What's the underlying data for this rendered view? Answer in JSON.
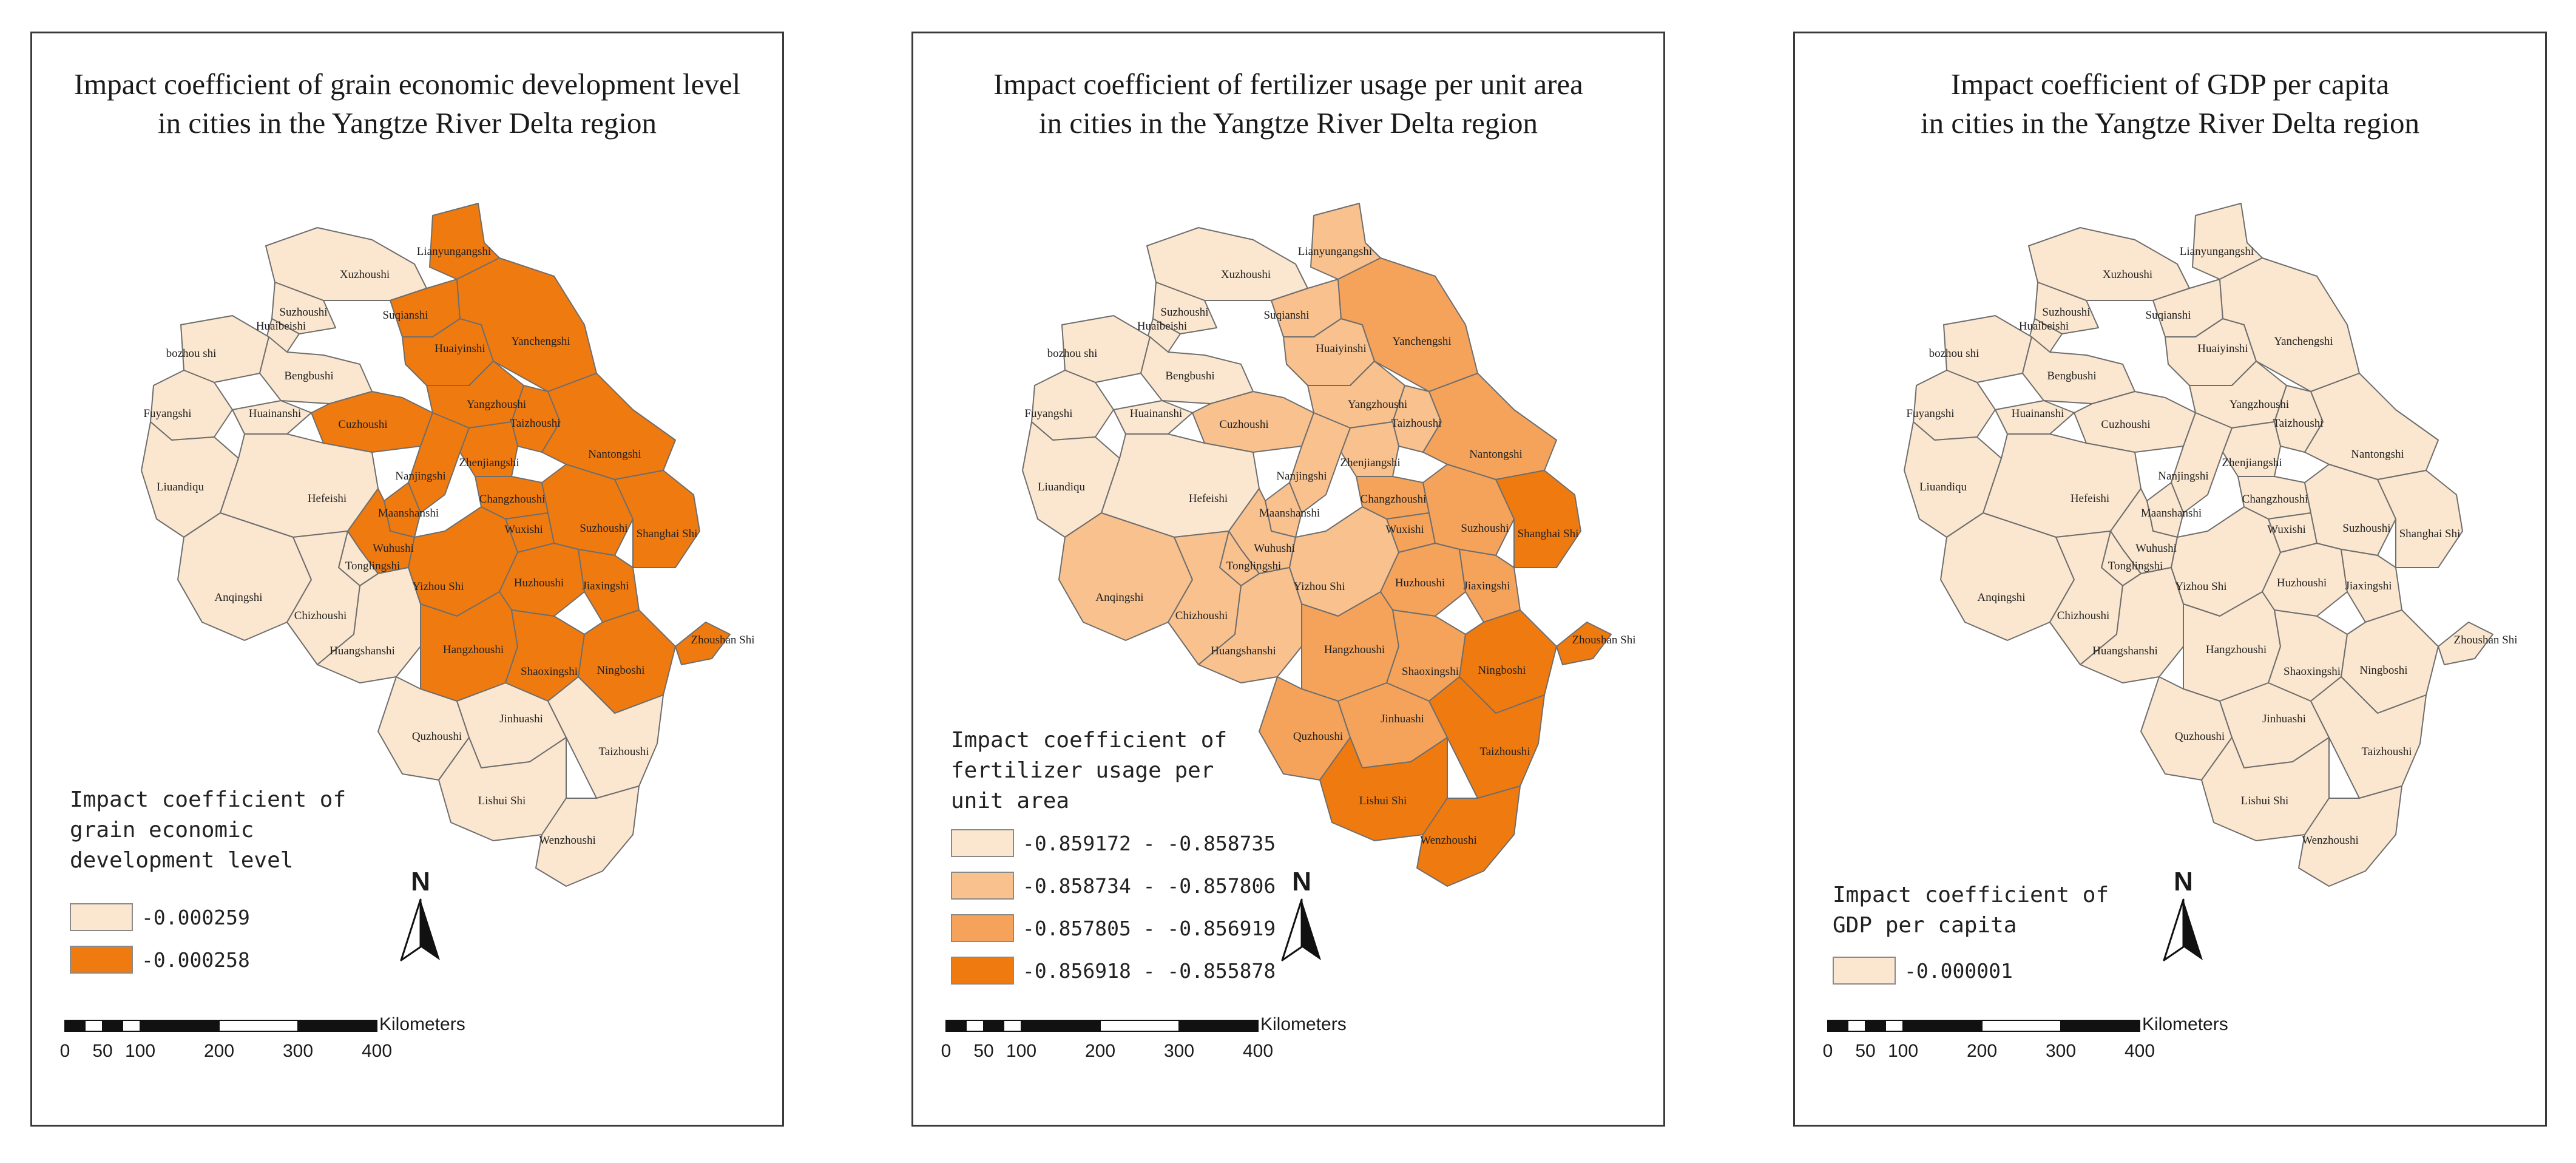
{
  "colors": {
    "light": "#fbe7cf",
    "c2": "#f8c18e",
    "c3": "#f5a35a",
    "dark": "#ef7a10",
    "border": "#6e6e6e"
  },
  "scale": {
    "unit": "Kilometers",
    "ticks": [
      "0",
      "50",
      "100",
      "200",
      "300",
      "400"
    ]
  },
  "north_letter": "N",
  "cities": [
    {
      "id": "lyg",
      "name": "Lianyungangshi"
    },
    {
      "id": "xz",
      "name": "Xuzhoushi"
    },
    {
      "id": "sq",
      "name": "Suqianshi"
    },
    {
      "id": "szh",
      "name": "Suzhoushi"
    },
    {
      "id": "hb",
      "name": "Huaibeishi"
    },
    {
      "id": "bz",
      "name": "bozhou shi"
    },
    {
      "id": "ha",
      "name": "Huaiyinshi"
    },
    {
      "id": "yc",
      "name": "Yanchengshi"
    },
    {
      "id": "bb",
      "name": "Bengbushi"
    },
    {
      "id": "fy",
      "name": "Fuyangshi"
    },
    {
      "id": "hn",
      "name": "Huainanshi"
    },
    {
      "id": "yz",
      "name": "Yangzhoushi"
    },
    {
      "id": "tzj",
      "name": "Taizhoushi"
    },
    {
      "id": "cz",
      "name": "Cuzhoushi"
    },
    {
      "id": "nt",
      "name": "Nantongshi"
    },
    {
      "id": "zj",
      "name": "Zhenjiangshi"
    },
    {
      "id": "nj",
      "name": "Nanjingshi"
    },
    {
      "id": "la",
      "name": "Liuandiqu"
    },
    {
      "id": "hf",
      "name": "Hefeishi"
    },
    {
      "id": "chz",
      "name": "Changzhoushi"
    },
    {
      "id": "mas",
      "name": "Maanshanshi"
    },
    {
      "id": "wx",
      "name": "Wuxishi"
    },
    {
      "id": "sz",
      "name": "Suzhoushi"
    },
    {
      "id": "sh",
      "name": "Shanghai Shi"
    },
    {
      "id": "wh",
      "name": "Wuhushi"
    },
    {
      "id": "tl",
      "name": "Tonglingshi"
    },
    {
      "id": "xc",
      "name": "Yizhou Shi"
    },
    {
      "id": "huz",
      "name": "Huzhoushi"
    },
    {
      "id": "jx",
      "name": "Jiaxingshi"
    },
    {
      "id": "aq",
      "name": "Anqingshi"
    },
    {
      "id": "chi",
      "name": "Chizhoushi"
    },
    {
      "id": "zs",
      "name": "Zhoushan Shi"
    },
    {
      "id": "hs",
      "name": "Huangshanshi"
    },
    {
      "id": "hz",
      "name": "Hangzhoushi"
    },
    {
      "id": "sx",
      "name": "Shaoxingshi"
    },
    {
      "id": "nb",
      "name": "Ningboshi"
    },
    {
      "id": "qz",
      "name": "Quzhoushi"
    },
    {
      "id": "jh",
      "name": "Jinhuashi"
    },
    {
      "id": "tzz",
      "name": "Taizhoushi"
    },
    {
      "id": "ls",
      "name": "Lishui Shi"
    },
    {
      "id": "wz",
      "name": "Wenzhoushi"
    }
  ],
  "panels": [
    {
      "title_line1": "Impact coefficient of grain economic development level",
      "title_line2": "in cities in the Yangtze River Delta region",
      "legend_title": [
        "Impact coefficient of",
        "grain economic",
        "development level"
      ],
      "legend": [
        {
          "label": "-0.000259",
          "color": "#fbe7cf"
        },
        {
          "label": "-0.000258",
          "color": "#ef7a10"
        }
      ],
      "city_classes": {
        "lyg": 4,
        "xz": 1,
        "sq": 4,
        "szh": 1,
        "hb": 1,
        "bz": 1,
        "ha": 4,
        "yc": 4,
        "bb": 1,
        "fy": 1,
        "hn": 1,
        "yz": 4,
        "tzj": 4,
        "cz": 4,
        "nt": 4,
        "zj": 4,
        "nj": 4,
        "la": 1,
        "hf": 1,
        "chz": 4,
        "mas": 4,
        "wx": 4,
        "sz": 4,
        "sh": 4,
        "wh": 4,
        "tl": 1,
        "xc": 4,
        "huz": 4,
        "jx": 4,
        "aq": 1,
        "chi": 1,
        "zs": 4,
        "hs": 1,
        "hz": 4,
        "sx": 4,
        "nb": 4,
        "qz": 1,
        "jh": 1,
        "tzz": 1,
        "ls": 1,
        "wz": 1
      }
    },
    {
      "title_line1": "Impact coefficient of fertilizer usage per unit area",
      "title_line2": "in cities in the Yangtze River Delta region",
      "legend_title": [
        "Impact coefficient of",
        "fertilizer usage per",
        "unit area"
      ],
      "legend": [
        {
          "label": "-0.859172 - -0.858735",
          "color": "#fbe7cf"
        },
        {
          "label": "-0.858734 - -0.857806",
          "color": "#f8c18e"
        },
        {
          "label": "-0.857805 - -0.856919",
          "color": "#f5a35a"
        },
        {
          "label": "-0.856918 - -0.855878",
          "color": "#ef7a10"
        }
      ],
      "city_classes": {
        "lyg": 2,
        "xz": 1,
        "sq": 2,
        "szh": 1,
        "hb": 1,
        "bz": 1,
        "ha": 2,
        "yc": 3,
        "bb": 1,
        "fy": 1,
        "hn": 1,
        "yz": 2,
        "tzj": 2,
        "cz": 2,
        "nt": 3,
        "zj": 2,
        "nj": 2,
        "la": 1,
        "hf": 1,
        "chz": 3,
        "mas": 2,
        "wx": 3,
        "sz": 3,
        "sh": 4,
        "wh": 2,
        "tl": 2,
        "xc": 2,
        "huz": 3,
        "jx": 3,
        "aq": 2,
        "chi": 2,
        "zs": 4,
        "hs": 2,
        "hz": 3,
        "sx": 3,
        "nb": 4,
        "qz": 3,
        "jh": 3,
        "tzz": 4,
        "ls": 4,
        "wz": 4
      }
    },
    {
      "title_line1": "Impact coefficient of GDP per capita",
      "title_line2": "in cities in the Yangtze River Delta region",
      "legend_title": [
        "Impact coefficient of",
        "GDP per capita"
      ],
      "legend": [
        {
          "label": "-0.000001",
          "color": "#fbe7cf"
        }
      ],
      "city_classes": {
        "lyg": 1,
        "xz": 1,
        "sq": 1,
        "szh": 1,
        "hb": 1,
        "bz": 1,
        "ha": 1,
        "yc": 1,
        "bb": 1,
        "fy": 1,
        "hn": 1,
        "yz": 1,
        "tzj": 1,
        "cz": 1,
        "nt": 1,
        "zj": 1,
        "nj": 1,
        "la": 1,
        "hf": 1,
        "chz": 1,
        "mas": 1,
        "wx": 1,
        "sz": 1,
        "sh": 1,
        "wh": 1,
        "tl": 1,
        "xc": 1,
        "huz": 1,
        "jx": 1,
        "aq": 1,
        "chi": 1,
        "zs": 1,
        "hs": 1,
        "hz": 1,
        "sx": 1,
        "nb": 1,
        "qz": 1,
        "jh": 1,
        "tzz": 1,
        "ls": 1,
        "wz": 1
      }
    }
  ]
}
